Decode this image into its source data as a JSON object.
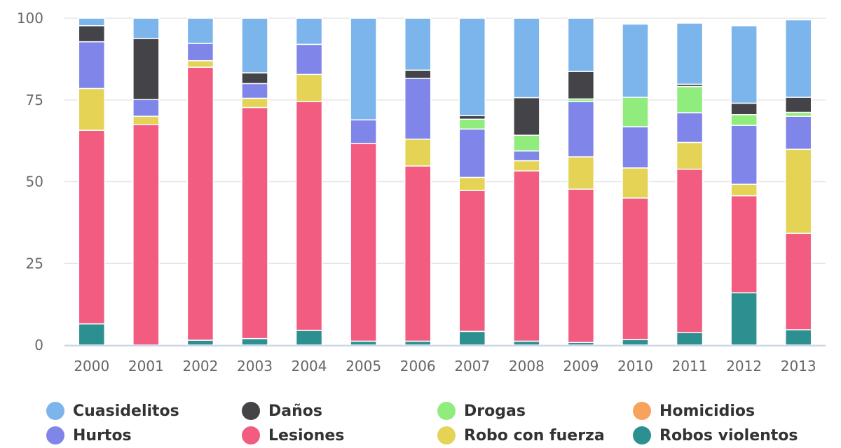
{
  "chart_data": {
    "type": "stacked-bar",
    "categories": [
      "2000",
      "2001",
      "2002",
      "2003",
      "2004",
      "2005",
      "2006",
      "2007",
      "2008",
      "2009",
      "2010",
      "2011",
      "2012",
      "2013"
    ],
    "ylim": [
      0,
      100
    ],
    "yticks": [
      0,
      25,
      50,
      75,
      100
    ],
    "stack_order_bottom_to_top": [
      "Robos violentos",
      "Homicidios",
      "Lesiones",
      "Robo con fuerza",
      "Hurtos",
      "Drogas",
      "Daños",
      "Cuasidelitos"
    ],
    "series": [
      {
        "name": "Robos violentos",
        "color": "#2b908f",
        "values": [
          6.5,
          0,
          1.5,
          2,
          4.5,
          1.2,
          1.2,
          4.2,
          1.2,
          0.8,
          1.7,
          3.8,
          16,
          4.7
        ]
      },
      {
        "name": "Homicidios",
        "color": "#f7a35c",
        "values": [
          0,
          0,
          0,
          0,
          0,
          0,
          0,
          0,
          0,
          0,
          0,
          0,
          0,
          0
        ]
      },
      {
        "name": "Robo con fuerza",
        "color": "#e4d354",
        "values": [
          12.8,
          2.5,
          2,
          2.8,
          8.3,
          0,
          8.2,
          4,
          3.1,
          9.9,
          9.2,
          8.2,
          3.5,
          25.7
        ]
      },
      {
        "name": "Lesiones",
        "color": "#f15c80",
        "values": [
          59.2,
          67.5,
          83.5,
          70.7,
          70,
          60.5,
          53.6,
          43.1,
          52.1,
          46.9,
          43.3,
          50,
          29.7,
          29.5
        ]
      },
      {
        "name": "Hurtos",
        "color": "#8085e9",
        "values": [
          14.3,
          5.1,
          5.3,
          4.5,
          9.2,
          7.2,
          18.6,
          14.8,
          3,
          16.9,
          12.6,
          9.1,
          18,
          10.1
        ]
      },
      {
        "name": "Drogas",
        "color": "#90ed7d",
        "values": [
          0,
          0,
          0,
          0,
          0,
          0,
          0,
          3,
          4.8,
          0.8,
          9,
          8,
          3.3,
          1.2
        ]
      },
      {
        "name": "Daños",
        "color": "#434348",
        "values": [
          4.9,
          18.7,
          0,
          3.3,
          0,
          0,
          2.5,
          1.1,
          11.5,
          8.4,
          0,
          0.7,
          3.5,
          4.6
        ]
      },
      {
        "name": "Cuasidelitos",
        "color": "#7cb5ec",
        "values": [
          2.3,
          6.2,
          7.7,
          16.7,
          8,
          31.1,
          15.9,
          29.8,
          24.3,
          16.3,
          22.4,
          18.7,
          23.7,
          23.7
        ]
      }
    ],
    "legend_order": [
      "Cuasidelitos",
      "Daños",
      "Drogas",
      "Homicidios",
      "Hurtos",
      "Lesiones",
      "Robo con fuerza",
      "Robos violentos"
    ],
    "legend_position": "bottom",
    "grid": true
  }
}
